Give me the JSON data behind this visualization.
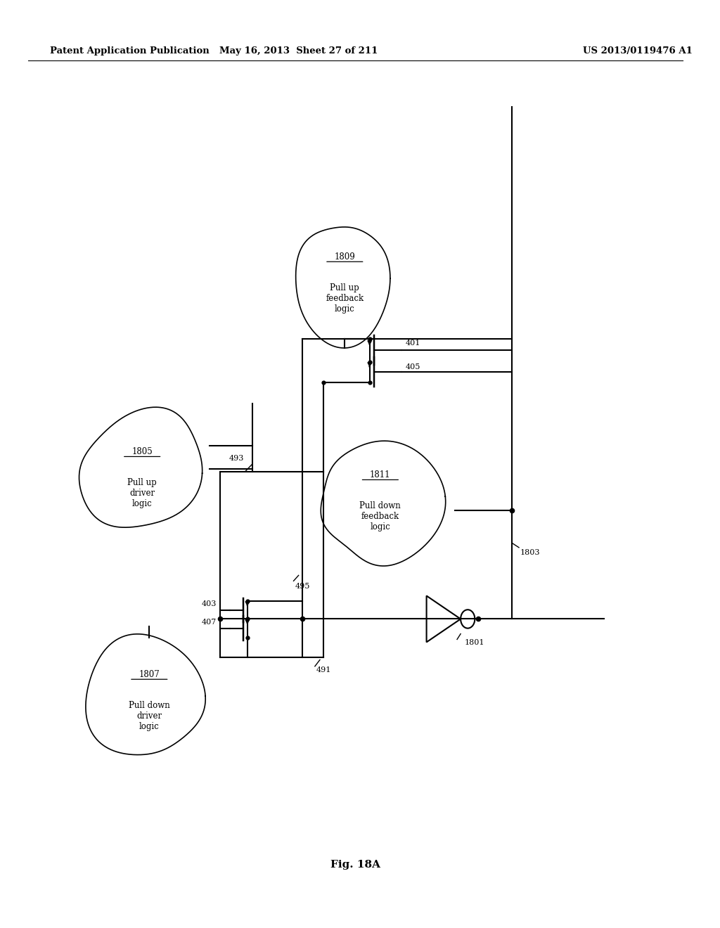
{
  "bg_color": "#ffffff",
  "header_left": "Patent Application Publication",
  "header_mid": "May 16, 2013  Sheet 27 of 211",
  "header_right": "US 2013/0119476 A1",
  "fig_label": "Fig. 18A",
  "blob_params": [
    [
      0.485,
      0.7,
      0.095,
      0.075,
      42
    ],
    [
      0.2,
      0.49,
      0.095,
      0.075,
      7
    ],
    [
      0.535,
      0.465,
      0.105,
      0.075,
      13
    ],
    [
      0.21,
      0.25,
      0.095,
      0.075,
      99
    ]
  ],
  "blob_labels": [
    "1809",
    "1805",
    "1811",
    "1807"
  ],
  "blob_texts": [
    "Pull up\nfeedback\nlogic",
    "Pull up\ndriver\nlogic",
    "Pull down\nfeedback\nlogic",
    "Pull down\ndriver\nlogic"
  ]
}
